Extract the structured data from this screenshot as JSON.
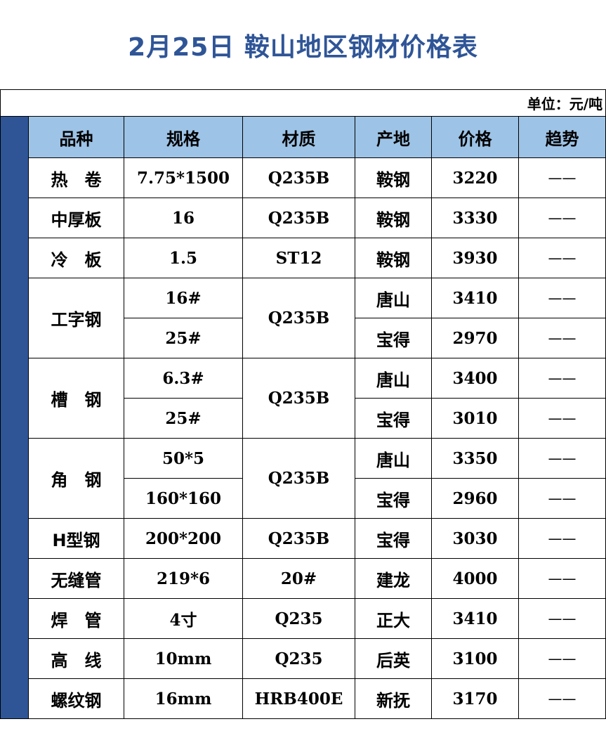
{
  "title": "2月25日 鞍山地区钢材价格表",
  "unit": "单位：元/吨",
  "colors": {
    "title": "#2F5597",
    "header_bg": "#9DC3E6",
    "strip": "#2F5597"
  },
  "headers": [
    "品种",
    "规格",
    "材质",
    "产地",
    "价格",
    "趋势"
  ],
  "groups": [
    {
      "name": "热　卷",
      "material": "Q235B",
      "rows": [
        {
          "spec": "7.75*1500",
          "origin": "鞍钢",
          "price": "3220",
          "trend": "——"
        }
      ]
    },
    {
      "name": "中厚板",
      "material": "Q235B",
      "rows": [
        {
          "spec": "16",
          "origin": "鞍钢",
          "price": "3330",
          "trend": "——"
        }
      ]
    },
    {
      "name": "冷　板",
      "material": "ST12",
      "rows": [
        {
          "spec": "1.5",
          "origin": "鞍钢",
          "price": "3930",
          "trend": "——"
        }
      ]
    },
    {
      "name": "工字钢",
      "material": "Q235B",
      "rows": [
        {
          "spec": "16#",
          "origin": "唐山",
          "price": "3410",
          "trend": "——"
        },
        {
          "spec": "25#",
          "origin": "宝得",
          "price": "2970",
          "trend": "——"
        }
      ]
    },
    {
      "name": "槽　钢",
      "material": "Q235B",
      "rows": [
        {
          "spec": "6.3#",
          "origin": "唐山",
          "price": "3400",
          "trend": "——"
        },
        {
          "spec": "25#",
          "origin": "宝得",
          "price": "3010",
          "trend": "——"
        }
      ]
    },
    {
      "name": "角　钢",
      "material": "Q235B",
      "rows": [
        {
          "spec": "50*5",
          "origin": "唐山",
          "price": "3350",
          "trend": "——"
        },
        {
          "spec": "160*160",
          "origin": "宝得",
          "price": "2960",
          "trend": "——"
        }
      ]
    },
    {
      "name": "H型钢",
      "material": "Q235B",
      "rows": [
        {
          "spec": "200*200",
          "origin": "宝得",
          "price": "3030",
          "trend": "——"
        }
      ]
    },
    {
      "name": "无缝管",
      "material": "20#",
      "rows": [
        {
          "spec": "219*6",
          "origin": "建龙",
          "price": "4000",
          "trend": "——"
        }
      ]
    },
    {
      "name": "焊　管",
      "material": "Q235",
      "rows": [
        {
          "spec": "4寸",
          "origin": "正大",
          "price": "3410",
          "trend": "——"
        }
      ]
    },
    {
      "name": "高　线",
      "material": "Q235",
      "rows": [
        {
          "spec": "10mm",
          "origin": "后英",
          "price": "3100",
          "trend": "——"
        }
      ]
    },
    {
      "name": "螺纹钢",
      "material": "HRB400E",
      "rows": [
        {
          "spec": "16mm",
          "origin": "新抚",
          "price": "3170",
          "trend": "——"
        }
      ]
    }
  ]
}
